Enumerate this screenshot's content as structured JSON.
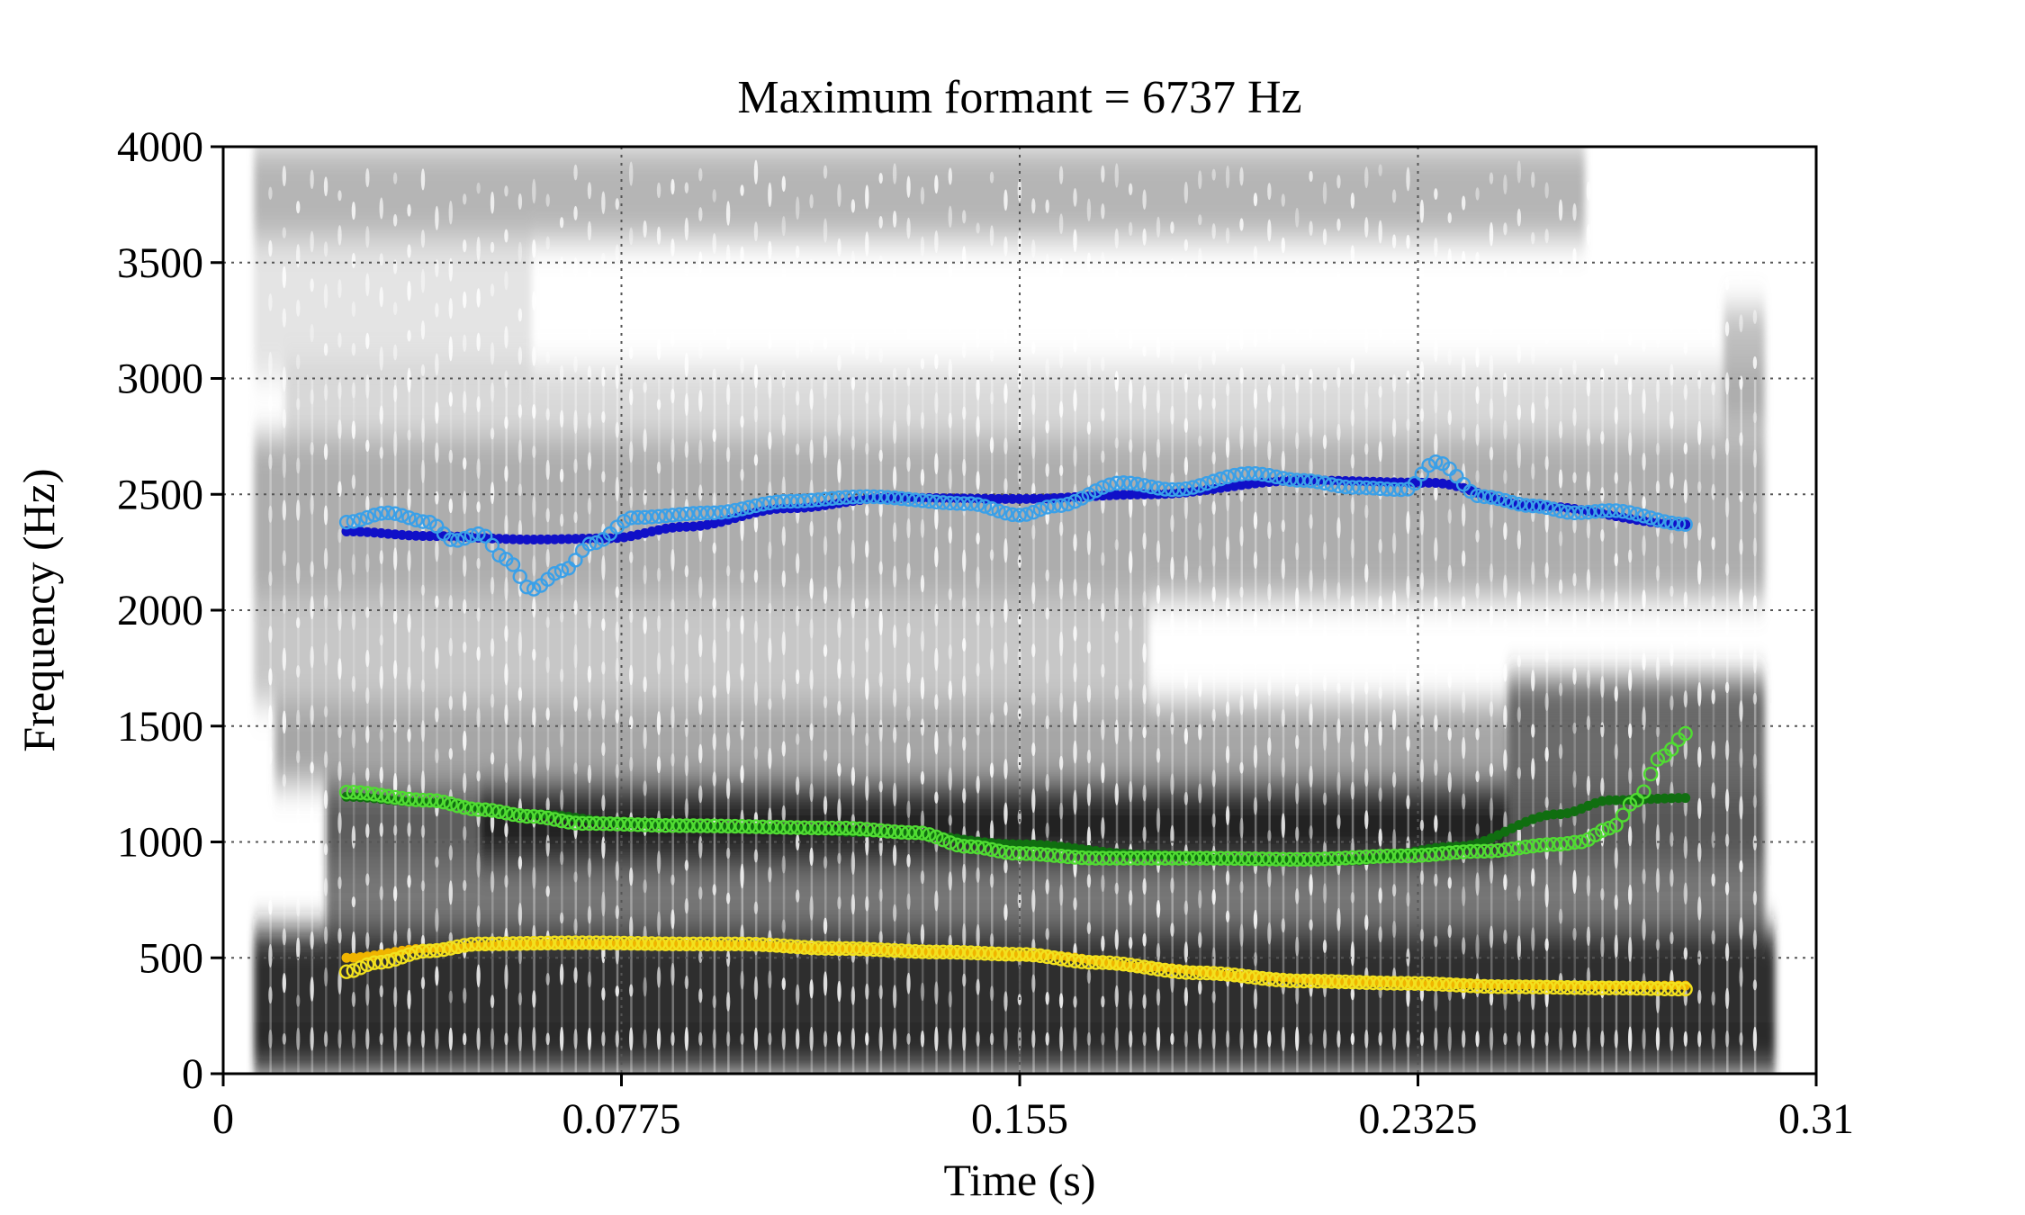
{
  "chart_data": {
    "type": "scatter",
    "title": "Maximum formant = 6737 Hz",
    "xlabel": "Time (s)",
    "ylabel": "Frequency (Hz)",
    "xlim": [
      0,
      0.31
    ],
    "ylim": [
      0,
      4000
    ],
    "x_ticks": [
      "0",
      "0.0775",
      "0.155",
      "0.2325",
      "0.31"
    ],
    "y_ticks": [
      "0",
      "500",
      "1000",
      "1500",
      "2000",
      "2500",
      "3000",
      "3500",
      "4000"
    ],
    "grid": true,
    "background": "grayscale spectrogram",
    "series": [
      {
        "marker": "filled",
        "color": "#1010c8",
        "points": [
          [
            0.024,
            2340
          ],
          [
            0.04,
            2320
          ],
          [
            0.06,
            2305
          ],
          [
            0.075,
            2310
          ],
          [
            0.09,
            2360
          ],
          [
            0.11,
            2440
          ],
          [
            0.13,
            2485
          ],
          [
            0.155,
            2480
          ],
          [
            0.18,
            2500
          ],
          [
            0.21,
            2560
          ],
          [
            0.235,
            2550
          ],
          [
            0.255,
            2450
          ],
          [
            0.285,
            2370
          ]
        ]
      },
      {
        "marker": "open",
        "color": "#3aa0e8",
        "points": [
          [
            0.024,
            2380
          ],
          [
            0.032,
            2420
          ],
          [
            0.04,
            2380
          ],
          [
            0.045,
            2300
          ],
          [
            0.05,
            2330
          ],
          [
            0.055,
            2220
          ],
          [
            0.06,
            2090
          ],
          [
            0.066,
            2170
          ],
          [
            0.072,
            2290
          ],
          [
            0.08,
            2400
          ],
          [
            0.095,
            2420
          ],
          [
            0.11,
            2470
          ],
          [
            0.125,
            2490
          ],
          [
            0.145,
            2460
          ],
          [
            0.155,
            2410
          ],
          [
            0.162,
            2450
          ],
          [
            0.175,
            2550
          ],
          [
            0.185,
            2520
          ],
          [
            0.2,
            2590
          ],
          [
            0.21,
            2560
          ],
          [
            0.22,
            2530
          ],
          [
            0.23,
            2520
          ],
          [
            0.236,
            2640
          ],
          [
            0.245,
            2490
          ],
          [
            0.255,
            2450
          ],
          [
            0.263,
            2420
          ],
          [
            0.27,
            2430
          ],
          [
            0.285,
            2370
          ]
        ]
      },
      {
        "marker": "filled",
        "color": "#106e10",
        "points": [
          [
            0.024,
            1195
          ],
          [
            0.04,
            1170
          ],
          [
            0.06,
            1120
          ],
          [
            0.08,
            1080
          ],
          [
            0.1,
            1060
          ],
          [
            0.13,
            1040
          ],
          [
            0.155,
            990
          ],
          [
            0.18,
            945
          ],
          [
            0.2,
            920
          ],
          [
            0.22,
            920
          ],
          [
            0.24,
            980
          ],
          [
            0.26,
            1120
          ],
          [
            0.27,
            1180
          ],
          [
            0.285,
            1190
          ]
        ]
      },
      {
        "marker": "open",
        "color": "#50dc32",
        "points": [
          [
            0.024,
            1215
          ],
          [
            0.04,
            1180
          ],
          [
            0.05,
            1140
          ],
          [
            0.06,
            1110
          ],
          [
            0.07,
            1080
          ],
          [
            0.09,
            1070
          ],
          [
            0.12,
            1060
          ],
          [
            0.135,
            1040
          ],
          [
            0.145,
            980
          ],
          [
            0.155,
            950
          ],
          [
            0.17,
            930
          ],
          [
            0.19,
            930
          ],
          [
            0.21,
            925
          ],
          [
            0.23,
            940
          ],
          [
            0.245,
            960
          ],
          [
            0.26,
            990
          ],
          [
            0.264,
            1000
          ],
          [
            0.27,
            1060
          ],
          [
            0.275,
            1180
          ],
          [
            0.28,
            1370
          ],
          [
            0.285,
            1470
          ]
        ]
      },
      {
        "marker": "filled",
        "color": "#f0b400",
        "points": [
          [
            0.024,
            500
          ],
          [
            0.04,
            540
          ],
          [
            0.06,
            560
          ],
          [
            0.08,
            560
          ],
          [
            0.1,
            555
          ],
          [
            0.12,
            540
          ],
          [
            0.14,
            525
          ],
          [
            0.16,
            510
          ],
          [
            0.18,
            460
          ],
          [
            0.2,
            420
          ],
          [
            0.22,
            395
          ],
          [
            0.24,
            385
          ],
          [
            0.26,
            380
          ],
          [
            0.285,
            380
          ]
        ]
      },
      {
        "marker": "open",
        "color": "#f2e11e",
        "points": [
          [
            0.024,
            440
          ],
          [
            0.03,
            480
          ],
          [
            0.04,
            530
          ],
          [
            0.05,
            560
          ],
          [
            0.07,
            565
          ],
          [
            0.09,
            560
          ],
          [
            0.1,
            560
          ],
          [
            0.12,
            540
          ],
          [
            0.14,
            525
          ],
          [
            0.155,
            515
          ],
          [
            0.17,
            480
          ],
          [
            0.19,
            435
          ],
          [
            0.21,
            400
          ],
          [
            0.23,
            390
          ],
          [
            0.25,
            375
          ],
          [
            0.27,
            370
          ],
          [
            0.285,
            365
          ]
        ]
      }
    ]
  }
}
